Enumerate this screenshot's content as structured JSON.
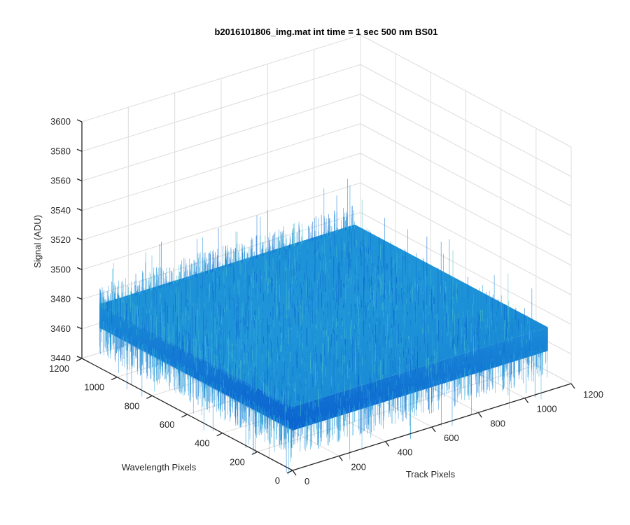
{
  "chart_data": {
    "type": "surface",
    "title": "b2016101806_img.mat int time = 1 sec  500 nm BS01",
    "xlabel": "Track Pixels",
    "ylabel": "Wavelength Pixels",
    "zlabel": "Signal (ADU)",
    "xlim": [
      0,
      1200
    ],
    "ylim": [
      0,
      1200
    ],
    "zlim": [
      3440,
      3600
    ],
    "xticks": [
      "0",
      "200",
      "400",
      "600",
      "800",
      "1000",
      "1200"
    ],
    "yticks": [
      "0",
      "200",
      "400",
      "600",
      "800",
      "1000",
      "1200"
    ],
    "zticks": [
      "3440",
      "3460",
      "3480",
      "3500",
      "3520",
      "3540",
      "3560",
      "3580",
      "3600"
    ],
    "data_extent": {
      "x": [
        0,
        1100
      ],
      "y": [
        0,
        1100
      ]
    },
    "mean_signal": 3475,
    "signal_range": [
      3450,
      3515
    ],
    "grid": true,
    "colormap": "parula",
    "colors": {
      "surface_low": "#0a5fcf",
      "surface_mid": "#1c8fd8",
      "surface_high": "#3fb7c4"
    }
  }
}
